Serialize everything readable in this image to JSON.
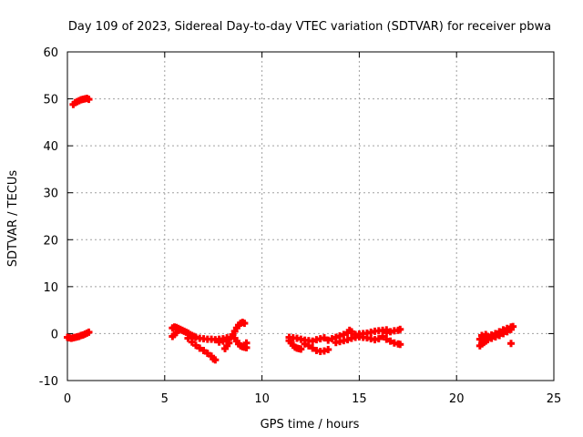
{
  "chart_data": {
    "type": "scatter",
    "title": "Day 109 of 2023, Sidereal Day-to-day VTEC variation (SDTVAR) for receiver pbwa",
    "xlabel": "GPS time / hours",
    "ylabel": "SDTVAR / TECUs",
    "xlim": [
      0,
      25
    ],
    "ylim": [
      -10,
      60
    ],
    "xticks": [
      0,
      5,
      10,
      15,
      20,
      25
    ],
    "yticks": [
      -10,
      0,
      10,
      20,
      30,
      40,
      50,
      60
    ],
    "grid": true,
    "marker": "plus",
    "series": [
      {
        "name": "SDTVAR",
        "color": "#ff0000",
        "points": [
          [
            0.3,
            48.8
          ],
          [
            0.4,
            49.2
          ],
          [
            0.5,
            49.4
          ],
          [
            0.6,
            49.6
          ],
          [
            0.7,
            49.8
          ],
          [
            0.8,
            49.9
          ],
          [
            0.9,
            50.0
          ],
          [
            1.0,
            50.1
          ],
          [
            1.1,
            49.9
          ],
          [
            0.0,
            -0.8
          ],
          [
            0.1,
            -0.9
          ],
          [
            0.2,
            -1.0
          ],
          [
            0.3,
            -0.9
          ],
          [
            0.4,
            -0.8
          ],
          [
            0.5,
            -0.7
          ],
          [
            0.6,
            -0.6
          ],
          [
            0.7,
            -0.4
          ],
          [
            0.8,
            -0.3
          ],
          [
            0.9,
            -0.1
          ],
          [
            1.0,
            0.1
          ],
          [
            1.1,
            0.3
          ],
          [
            5.4,
            1.2
          ],
          [
            5.5,
            1.4
          ],
          [
            5.6,
            1.3
          ],
          [
            5.7,
            1.1
          ],
          [
            5.8,
            0.9
          ],
          [
            5.9,
            0.7
          ],
          [
            6.0,
            0.5
          ],
          [
            6.1,
            0.3
          ],
          [
            6.2,
            0.1
          ],
          [
            6.3,
            -0.2
          ],
          [
            6.4,
            -0.4
          ],
          [
            6.5,
            -0.6
          ],
          [
            5.4,
            -0.6
          ],
          [
            5.5,
            -0.2
          ],
          [
            5.6,
            0.2
          ],
          [
            6.2,
            -1.0
          ],
          [
            6.4,
            -1.8
          ],
          [
            6.6,
            -2.5
          ],
          [
            6.8,
            -3.1
          ],
          [
            7.0,
            -3.6
          ],
          [
            7.2,
            -4.2
          ],
          [
            7.4,
            -4.8
          ],
          [
            7.5,
            -5.4
          ],
          [
            7.6,
            -5.6
          ],
          [
            6.6,
            -0.8
          ],
          [
            6.8,
            -1.0
          ],
          [
            7.0,
            -1.1
          ],
          [
            7.2,
            -1.2
          ],
          [
            7.4,
            -1.2
          ],
          [
            7.6,
            -1.3
          ],
          [
            7.8,
            -1.2
          ],
          [
            8.0,
            -1.1
          ],
          [
            8.2,
            -0.9
          ],
          [
            7.8,
            -1.8
          ],
          [
            8.0,
            -1.6
          ],
          [
            8.2,
            -1.4
          ],
          [
            8.4,
            -0.8
          ],
          [
            8.5,
            -0.2
          ],
          [
            8.6,
            0.5
          ],
          [
            8.7,
            1.2
          ],
          [
            8.8,
            1.8
          ],
          [
            8.9,
            2.2
          ],
          [
            9.0,
            2.4
          ],
          [
            9.1,
            2.2
          ],
          [
            8.6,
            -1.0
          ],
          [
            8.7,
            -1.6
          ],
          [
            8.8,
            -2.2
          ],
          [
            8.9,
            -2.6
          ],
          [
            9.0,
            -2.8
          ],
          [
            9.1,
            -2.9
          ],
          [
            9.2,
            -3.0
          ],
          [
            9.2,
            -2.0
          ],
          [
            8.1,
            -3.2
          ],
          [
            8.2,
            -2.6
          ],
          [
            8.3,
            -2.0
          ],
          [
            11.4,
            -1.5
          ],
          [
            11.5,
            -2.0
          ],
          [
            11.6,
            -2.5
          ],
          [
            11.7,
            -2.9
          ],
          [
            11.8,
            -3.1
          ],
          [
            11.9,
            -3.2
          ],
          [
            12.0,
            -3.3
          ],
          [
            11.4,
            -0.8
          ],
          [
            11.6,
            -0.9
          ],
          [
            11.8,
            -1.0
          ],
          [
            12.0,
            -1.2
          ],
          [
            12.2,
            -1.4
          ],
          [
            12.4,
            -1.5
          ],
          [
            12.2,
            -2.2
          ],
          [
            12.4,
            -2.6
          ],
          [
            12.6,
            -3.1
          ],
          [
            12.8,
            -3.6
          ],
          [
            13.0,
            -3.8
          ],
          [
            13.2,
            -3.7
          ],
          [
            13.4,
            -3.4
          ],
          [
            12.6,
            -1.6
          ],
          [
            12.8,
            -1.3
          ],
          [
            13.0,
            -1.1
          ],
          [
            13.2,
            -0.9
          ],
          [
            13.4,
            -1.4
          ],
          [
            13.6,
            -1.1
          ],
          [
            13.8,
            -0.8
          ],
          [
            14.0,
            -0.5
          ],
          [
            14.2,
            -0.2
          ],
          [
            14.4,
            0.2
          ],
          [
            14.5,
            0.7
          ],
          [
            14.6,
            0.4
          ],
          [
            13.8,
            -1.9
          ],
          [
            14.0,
            -1.7
          ],
          [
            14.2,
            -1.5
          ],
          [
            14.4,
            -1.3
          ],
          [
            14.6,
            -1.0
          ],
          [
            14.8,
            -0.8
          ],
          [
            15.0,
            -0.7
          ],
          [
            15.2,
            -0.8
          ],
          [
            15.4,
            -0.9
          ],
          [
            15.6,
            -1.1
          ],
          [
            15.8,
            -1.3
          ],
          [
            16.0,
            -1.1
          ],
          [
            14.8,
            -0.2
          ],
          [
            15.0,
            -0.1
          ],
          [
            15.2,
            0.0
          ],
          [
            15.4,
            0.1
          ],
          [
            15.6,
            0.3
          ],
          [
            15.8,
            0.5
          ],
          [
            16.0,
            0.6
          ],
          [
            16.2,
            0.7
          ],
          [
            16.4,
            0.8
          ],
          [
            16.4,
            0.2
          ],
          [
            16.6,
            0.4
          ],
          [
            16.8,
            0.6
          ],
          [
            17.0,
            0.7
          ],
          [
            17.1,
            0.9
          ],
          [
            16.2,
            -0.6
          ],
          [
            16.4,
            -1.2
          ],
          [
            16.6,
            -1.6
          ],
          [
            16.8,
            -2.0
          ],
          [
            17.0,
            -2.2
          ],
          [
            17.1,
            -2.3
          ],
          [
            21.2,
            -2.6
          ],
          [
            21.3,
            -2.2
          ],
          [
            21.4,
            -1.9
          ],
          [
            21.5,
            -1.6
          ],
          [
            21.6,
            -1.3
          ],
          [
            21.8,
            -1.0
          ],
          [
            22.0,
            -0.7
          ],
          [
            22.2,
            -0.4
          ],
          [
            22.4,
            0.0
          ],
          [
            22.6,
            0.4
          ],
          [
            22.8,
            0.9
          ],
          [
            22.9,
            1.5
          ],
          [
            21.2,
            -1.2
          ],
          [
            21.4,
            -0.9
          ],
          [
            21.6,
            -0.6
          ],
          [
            21.8,
            -0.3
          ],
          [
            22.0,
            0.0
          ],
          [
            22.2,
            0.4
          ],
          [
            22.4,
            0.8
          ],
          [
            22.6,
            1.1
          ],
          [
            22.8,
            1.4
          ],
          [
            21.3,
            -0.4
          ],
          [
            21.5,
            -0.2
          ],
          [
            22.8,
            -2.1
          ]
        ]
      }
    ]
  }
}
